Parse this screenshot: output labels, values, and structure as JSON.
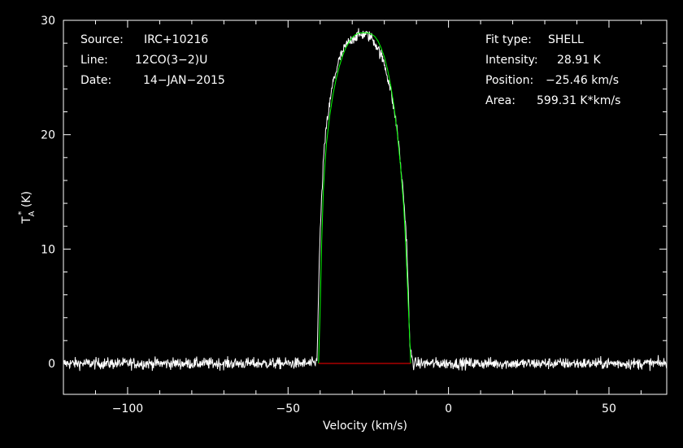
{
  "chart_data": {
    "type": "line",
    "title": "",
    "xlabel": "Velocity (km/s)",
    "ylabel_main": "T",
    "ylabel_sub": "A",
    "ylabel_sup": "*",
    "ylabel_unit": " (K)",
    "xlim": [
      -120,
      68
    ],
    "ylim": [
      -2.7,
      30
    ],
    "x_ticks": [
      -100,
      -50,
      0,
      50
    ],
    "x_tick_labels": [
      "−100",
      "−50",
      "0",
      "50"
    ],
    "y_ticks": [
      0,
      10,
      20,
      30
    ],
    "y_tick_labels": [
      "0",
      "10",
      "20",
      "30"
    ],
    "grid": false,
    "info_left": [
      {
        "key": "Source:",
        "value": "IRC+10216"
      },
      {
        "key": "Line:",
        "value": "12CO(3−2)U"
      },
      {
        "key": "Date:",
        "value": "14−JAN−2015"
      }
    ],
    "info_right": [
      {
        "key": "Fit type:",
        "value": "SHELL"
      },
      {
        "key": "Intensity:",
        "value": "28.91 K"
      },
      {
        "key": "Position:",
        "value": "−25.46 km/s"
      },
      {
        "key": "Area:",
        "value": "599.31 K*km/s"
      }
    ],
    "series": [
      {
        "role": "spectrum",
        "color": "#ffffff",
        "noise_rms": 0.35,
        "x": [
          -120,
          -41.5,
          -41,
          -40,
          -39,
          -38,
          -36,
          -34,
          -32,
          -30,
          -28,
          -26,
          -24,
          -22,
          -20,
          -18,
          -16,
          -14,
          -13,
          -12,
          -11.5,
          -11,
          68
        ],
        "y": [
          0,
          0,
          0.3,
          11.5,
          17.8,
          20.9,
          24.6,
          26.6,
          27.8,
          28.4,
          28.7,
          28.8,
          28.5,
          27.6,
          26.2,
          23.9,
          20.5,
          14.6,
          10.5,
          1.3,
          0.6,
          0,
          0
        ]
      },
      {
        "role": "fit",
        "color": "#00ff00",
        "x": [
          -40.5,
          -40,
          -39.5,
          -39,
          -38.5,
          -38,
          -37,
          -36,
          -35,
          -34,
          -33,
          -32,
          -31,
          -30,
          -29,
          -28,
          -27,
          -26,
          -25.46,
          -25,
          -24,
          -23,
          -22,
          -21,
          -20,
          -19,
          -18,
          -17,
          -16,
          -15,
          -14,
          -13.5,
          -13,
          -12.5,
          -12,
          -11.8
        ],
        "y": [
          0,
          4.6,
          10.8,
          15.2,
          17.5,
          19.3,
          21.7,
          23.5,
          24.9,
          26.0,
          26.9,
          27.6,
          28.1,
          28.5,
          28.75,
          28.87,
          28.91,
          28.9,
          28.91,
          28.89,
          28.8,
          28.6,
          28.2,
          27.6,
          26.8,
          25.7,
          24.3,
          22.5,
          20.2,
          17.4,
          13.8,
          11.3,
          8.2,
          4.8,
          1.5,
          0
        ]
      },
      {
        "role": "baseline",
        "color": "#ff0000",
        "x": [
          -40.5,
          -11.8
        ],
        "y": [
          0,
          0
        ]
      }
    ]
  }
}
